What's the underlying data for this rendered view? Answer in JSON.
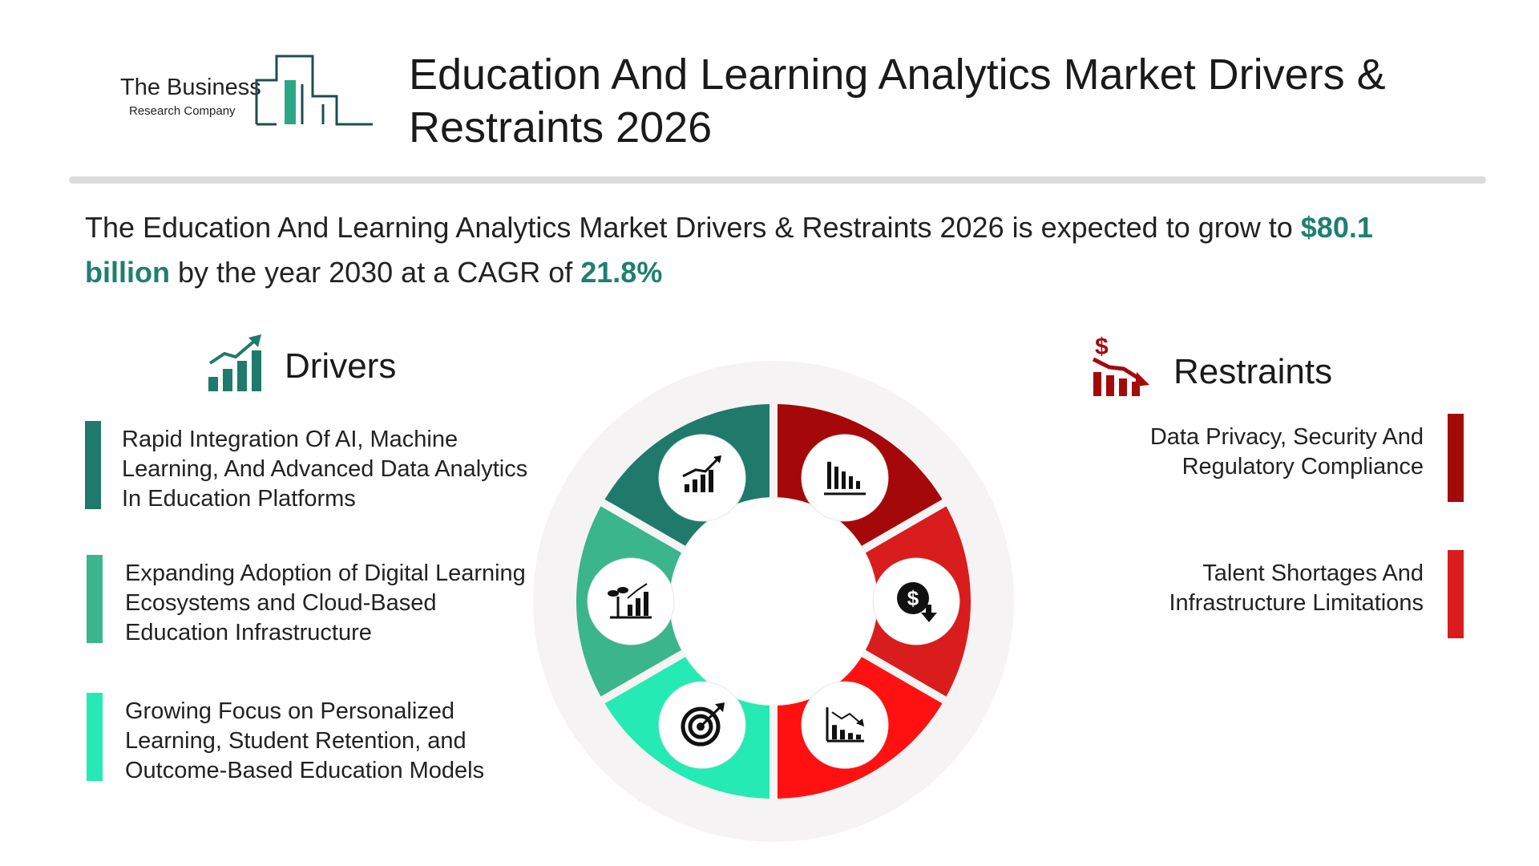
{
  "logo": {
    "line1": "The Business",
    "line2": "Research Company"
  },
  "title": "Education And Learning Analytics Market Drivers & Restraints 2026",
  "summary": {
    "prefix": "The Education And Learning Analytics Market Drivers & Restraints 2026  is expected to grow to ",
    "value": "$80.1 billion",
    "middle": " by the year 2030 at a CAGR of ",
    "cagr": "21.8%"
  },
  "drivers": {
    "heading": "Drivers",
    "icon": "bar-chart-growth-icon",
    "items": [
      {
        "text": "Rapid Integration Of AI, Machine Learning, And Advanced Data Analytics In Education Platforms",
        "color": "#1f7a6b"
      },
      {
        "text": "Expanding Adoption of Digital Learning Ecosystems and Cloud-Based Education Infrastructure",
        "color": "#3bb58c"
      },
      {
        "text": "Growing Focus on Personalized Learning, Student Retention, and Outcome-Based Education Models",
        "color": "#25eab3"
      }
    ]
  },
  "restraints": {
    "heading": "Restraints",
    "icon": "dollar-decline-chart-icon",
    "items": [
      {
        "text": "Data Privacy, Security And Regulatory Compliance",
        "color": "#a30b0b"
      },
      {
        "text": "Talent Shortages And Infrastructure Limitations",
        "color": "#d91c1c"
      }
    ]
  },
  "wheel": {
    "segments": [
      {
        "name": "driver-1",
        "color": "#1f7a6b",
        "icon": "growth-chart-icon"
      },
      {
        "name": "driver-2",
        "color": "#3bb58c",
        "icon": "plant-growth-chart-icon"
      },
      {
        "name": "driver-3",
        "color": "#25eab3",
        "icon": "target-icon"
      },
      {
        "name": "restraint-1",
        "color": "#a50808",
        "icon": "declining-bar-chart-icon"
      },
      {
        "name": "restraint-2",
        "color": "#d91c1c",
        "icon": "dollar-down-icon"
      },
      {
        "name": "restraint-3",
        "color": "#ff1111",
        "icon": "declining-chart-icon"
      }
    ],
    "ring_color": "#f5f3f3"
  },
  "colors": {
    "accent": "#1f7f71",
    "divider": "#dcdcdc"
  }
}
